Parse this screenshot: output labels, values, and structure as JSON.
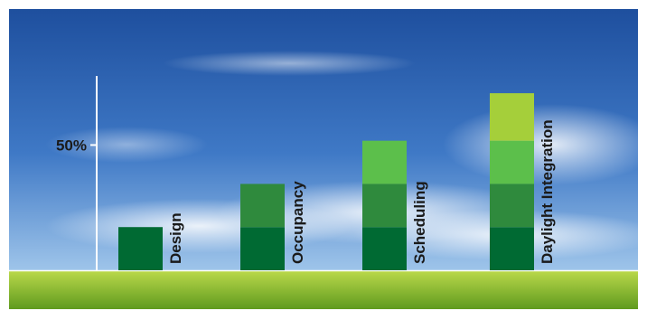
{
  "colors": {
    "sky_top": "#1e4f9e",
    "sky_mid": "#3f79c6",
    "sky_low": "#9fc5ea",
    "grass_top": "#b9d84a",
    "grass_bottom": "#5f9a1e",
    "axis": "#ffffff",
    "label_text": "#1a1a1a",
    "segments": [
      "#006a33",
      "#2f8a3d",
      "#5cbf4b",
      "#a5cf3a"
    ]
  },
  "chart_data": {
    "type": "bar",
    "stacked": true,
    "categories": [
      "Design",
      "Occupancy",
      "Scheduling",
      "Daylight Integration"
    ],
    "series": [
      {
        "values": [
          10,
          10,
          10,
          10
        ]
      },
      {
        "values": [
          0,
          10,
          10,
          10
        ]
      },
      {
        "values": [
          0,
          0,
          10,
          10
        ]
      },
      {
        "values": [
          0,
          0,
          0,
          11
        ]
      }
    ],
    "totals": [
      10,
      20,
      30,
      41
    ],
    "ylim": [
      0,
      45
    ],
    "y_ticks": [
      {
        "value": 29,
        "label": "50%"
      }
    ],
    "category_label_orientation": "vertical",
    "grid": false,
    "legend": "none"
  }
}
